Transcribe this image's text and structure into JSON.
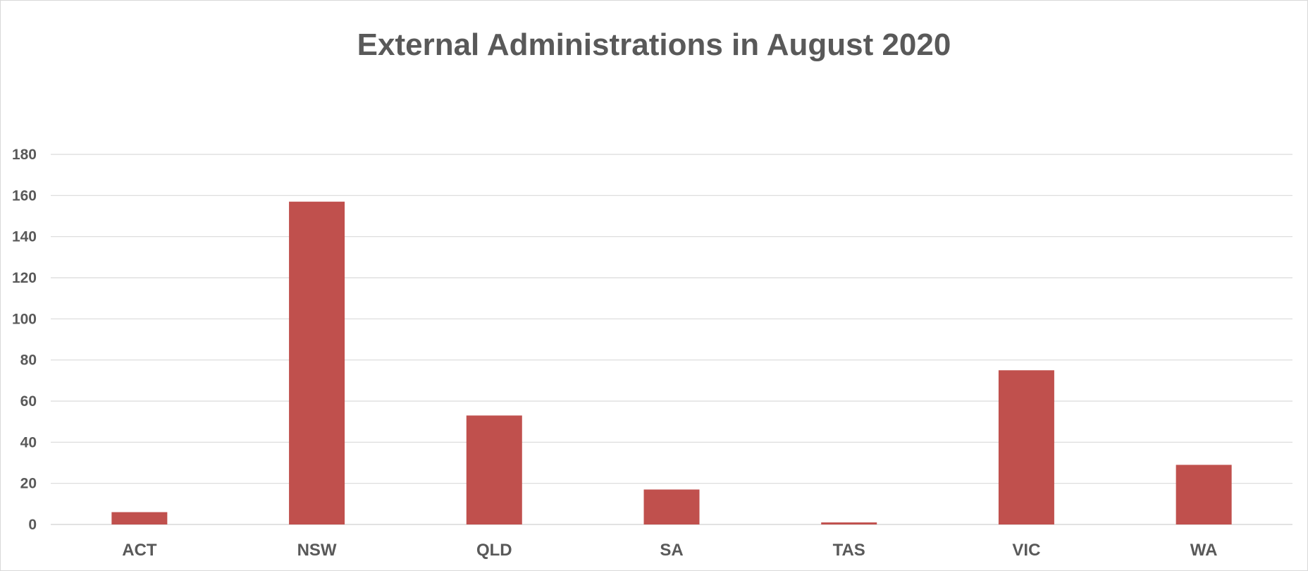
{
  "chart_data": {
    "type": "bar",
    "title": "External Administrations in August 2020",
    "xlabel": "",
    "ylabel": "",
    "categories": [
      "ACT",
      "NSW",
      "QLD",
      "SA",
      "TAS",
      "VIC",
      "WA"
    ],
    "values": [
      6,
      157,
      53,
      17,
      1,
      75,
      29
    ],
    "ylim": [
      0,
      180
    ],
    "yticks": [
      0,
      20,
      40,
      60,
      80,
      100,
      120,
      140,
      160,
      180
    ],
    "grid": true,
    "legend": "none",
    "colors": {
      "bar": "#c0504d",
      "grid": "#d9d9d9",
      "text": "#595959"
    }
  }
}
